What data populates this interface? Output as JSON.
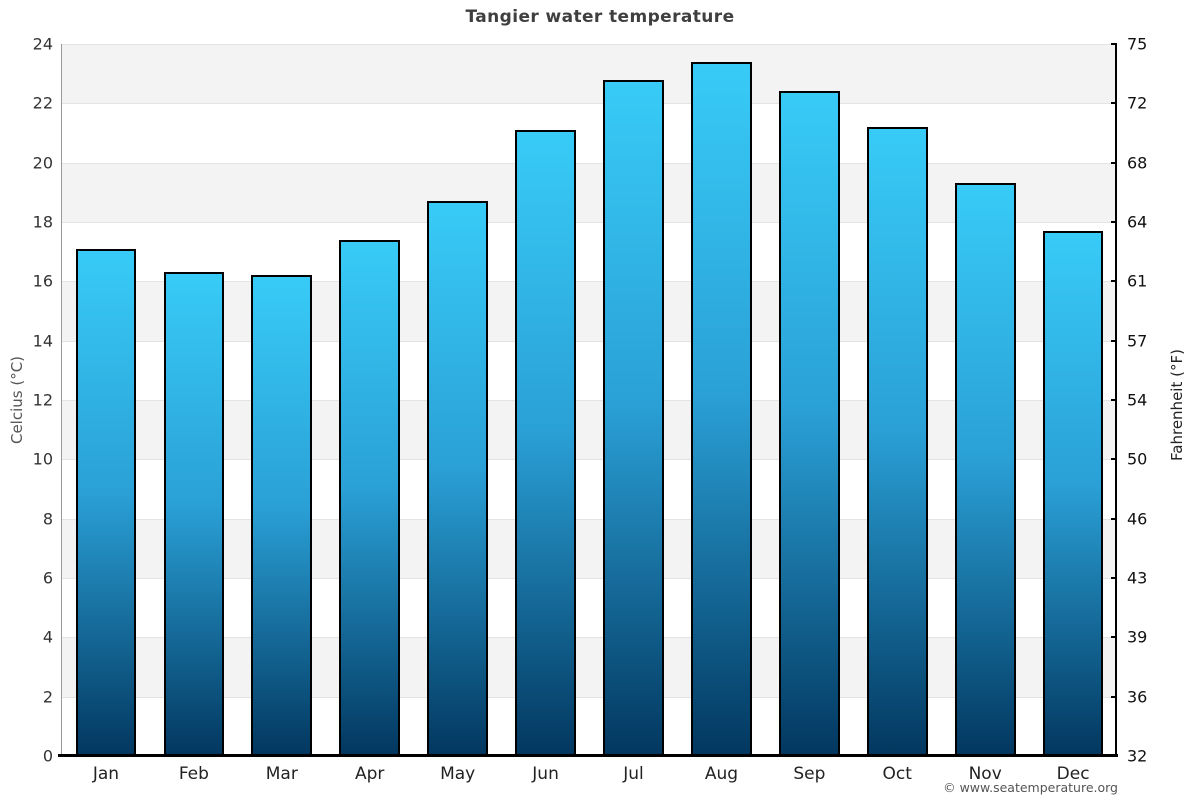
{
  "title": "Tangier water temperature",
  "axes": {
    "left": {
      "label": "Celcius (°C)",
      "ticks": [
        24,
        22,
        20,
        18,
        16,
        14,
        12,
        10,
        8,
        6,
        4,
        2,
        0
      ]
    },
    "right": {
      "label": "Fahrenheit (°F)",
      "ticks": [
        75,
        72,
        68,
        64,
        61,
        57,
        54,
        50,
        46,
        43,
        39,
        36,
        32
      ]
    }
  },
  "footer": {
    "copyright": "© www.seatemperature.org"
  },
  "colors": {
    "bar_top": "#38cbf7",
    "bar_mid": "#2aa0d6",
    "bar_bottom": "#02375f",
    "bar_border": "#000000",
    "band_shaded": "#f3f3f3",
    "band_plain": "#ffffff",
    "gridline": "#e3e3e3",
    "axis_black": "#000000",
    "axis_left_gray": "#999999",
    "title_text": "#3f3f3f"
  },
  "chart_data": {
    "type": "bar",
    "title": "Tangier water temperature",
    "categories": [
      "Jan",
      "Feb",
      "Mar",
      "Apr",
      "May",
      "Jun",
      "Jul",
      "Aug",
      "Sep",
      "Oct",
      "Nov",
      "Dec"
    ],
    "values": [
      17.1,
      16.3,
      16.2,
      17.4,
      18.7,
      21.1,
      22.8,
      23.4,
      22.4,
      21.2,
      19.3,
      17.7
    ],
    "xlabel": "",
    "ylabel": "Celcius (°C)",
    "ylabel_right": "Fahrenheit (°F)",
    "ylim": [
      0,
      24
    ],
    "yticks_left": [
      24,
      22,
      20,
      18,
      16,
      14,
      12,
      10,
      8,
      6,
      4,
      2,
      0
    ],
    "yticks_right": [
      75,
      72,
      68,
      64,
      61,
      57,
      54,
      50,
      46,
      43,
      39,
      36,
      32
    ],
    "legend": "none",
    "grid": "horizontal gridlines every 2°C with alternating shaded bands, shaded topmost",
    "bar_fill": "vertical gradient from bar_top to bar_bottom per bar",
    "source_note": "© www.seatemperature.org"
  }
}
